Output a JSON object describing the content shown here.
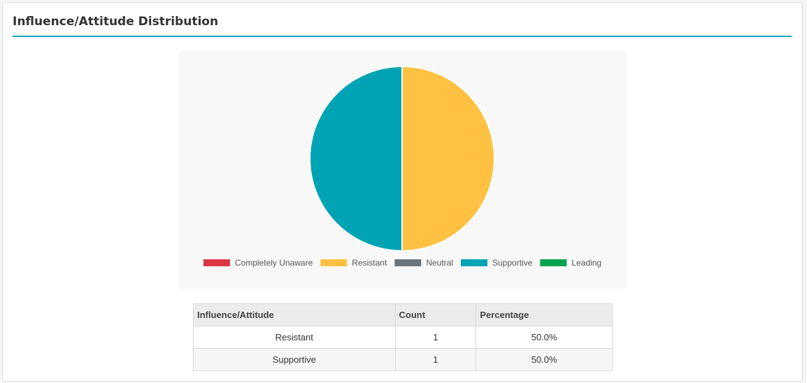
{
  "card": {
    "title": "Influence/Attitude Distribution"
  },
  "colors": {
    "accent": "#17a2b8",
    "completely_unaware": "#dc3545",
    "resistant": "#ffc142",
    "neutral": "#6c757d",
    "supportive": "#00a3b4",
    "leading": "#00a34e"
  },
  "chart_data": {
    "type": "pie",
    "title": "",
    "legend_position": "bottom",
    "legend": [
      {
        "label": "Completely Unaware",
        "color": "#dc3545"
      },
      {
        "label": "Resistant",
        "color": "#ffc142"
      },
      {
        "label": "Neutral",
        "color": "#6c757d"
      },
      {
        "label": "Supportive",
        "color": "#00a3b4"
      },
      {
        "label": "Leading",
        "color": "#00a34e"
      }
    ],
    "slices": [
      {
        "label": "Completely Unaware",
        "value": 0,
        "color": "#dc3545"
      },
      {
        "label": "Resistant",
        "value": 1,
        "color": "#ffc142"
      },
      {
        "label": "Neutral",
        "value": 0,
        "color": "#6c757d"
      },
      {
        "label": "Supportive",
        "value": 1,
        "color": "#00a3b4"
      },
      {
        "label": "Leading",
        "value": 0,
        "color": "#00a34e"
      }
    ]
  },
  "table": {
    "headers": [
      "Influence/Attitude",
      "Count",
      "Percentage"
    ],
    "rows": [
      [
        "Resistant",
        "1",
        "50.0%"
      ],
      [
        "Supportive",
        "1",
        "50.0%"
      ]
    ]
  }
}
